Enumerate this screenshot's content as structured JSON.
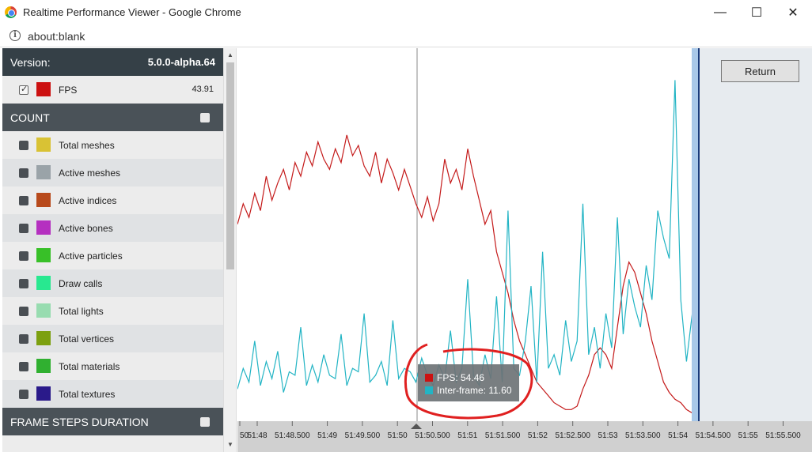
{
  "window": {
    "title": "Realtime Performance Viewer - Google Chrome",
    "url": "about:blank",
    "minimize": "—",
    "maximize": "☐",
    "close": "✕"
  },
  "sidebar": {
    "version_label": "Version:",
    "version_value": "5.0.0-alpha.64",
    "fps": {
      "label": "FPS",
      "value": "43.91",
      "color": "#cc1111",
      "checked": true
    },
    "sections": [
      {
        "title": "COUNT",
        "items": [
          {
            "label": "Total meshes",
            "color": "#d9c234"
          },
          {
            "label": "Active meshes",
            "color": "#9aa3a8"
          },
          {
            "label": "Active indices",
            "color": "#b84a1c"
          },
          {
            "label": "Active bones",
            "color": "#b530c0"
          },
          {
            "label": "Active particles",
            "color": "#38c028"
          },
          {
            "label": "Draw calls",
            "color": "#28e890"
          },
          {
            "label": "Total lights",
            "color": "#98dcb0"
          },
          {
            "label": "Total vertices",
            "color": "#7ca010"
          },
          {
            "label": "Total materials",
            "color": "#30b030"
          },
          {
            "label": "Total textures",
            "color": "#2a1a8a"
          }
        ]
      },
      {
        "title": "FRAME STEPS DURATION",
        "items": []
      }
    ]
  },
  "return_button": "Return",
  "tooltip": {
    "fps_label": "FPS: 54.46",
    "fps_color": "#cc1111",
    "interframe_label": "Inter-frame: 11.60",
    "interframe_color": "#22b4c4"
  },
  "chart_data": {
    "type": "line",
    "x_ticks": [
      "50",
      "51:48",
      "51:48.500",
      "51:49",
      "51:49.500",
      "51:50",
      "51:50.500",
      "51:51",
      "51:51.500",
      "51:52",
      "51:52.500",
      "51:53",
      "51:53.500",
      "51:54",
      "51:54.500",
      "51:55",
      "51:55.500"
    ],
    "series": [
      {
        "name": "FPS",
        "color": "#c41a1a",
        "values": [
          56,
          62,
          58,
          65,
          60,
          70,
          63,
          68,
          72,
          66,
          74,
          70,
          77,
          73,
          80,
          75,
          72,
          78,
          74,
          82,
          76,
          79,
          73,
          70,
          77,
          68,
          75,
          71,
          66,
          72,
          67,
          62,
          58,
          64,
          57,
          62,
          75,
          68,
          72,
          66,
          78,
          70,
          63,
          56,
          60,
          48,
          42,
          36,
          28,
          22,
          18,
          14,
          10,
          8,
          6,
          4,
          3,
          2,
          2,
          3,
          8,
          12,
          18,
          20,
          18,
          14,
          26,
          38,
          45,
          42,
          36,
          30,
          22,
          16,
          10,
          7,
          5,
          4,
          2,
          1,
          2
        ]
      },
      {
        "name": "Inter-frame",
        "color": "#22b4c4",
        "values": [
          8,
          14,
          10,
          22,
          9,
          16,
          11,
          19,
          7,
          13,
          12,
          26,
          9,
          15,
          10,
          18,
          12,
          11,
          24,
          9,
          14,
          13,
          30,
          10,
          12,
          16,
          9,
          28,
          11,
          14,
          13,
          10,
          17,
          12,
          9,
          15,
          11,
          25,
          10,
          14,
          40,
          12,
          9,
          18,
          11,
          35,
          10,
          60,
          14,
          12,
          22,
          38,
          10,
          48,
          14,
          18,
          12,
          28,
          16,
          22,
          62,
          18,
          26,
          14,
          30,
          20,
          58,
          24,
          40,
          32,
          26,
          44,
          34,
          60,
          52,
          46,
          98,
          34,
          16,
          30,
          20
        ]
      }
    ]
  }
}
